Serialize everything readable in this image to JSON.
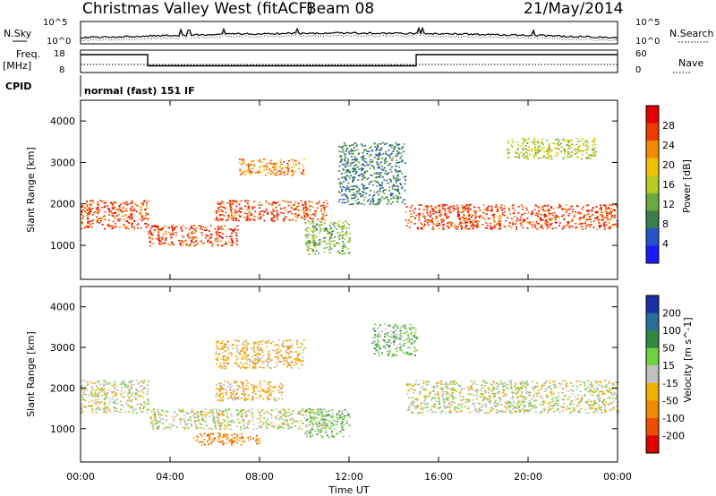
{
  "header": {
    "station": "Christmas Valley West (fitACF)",
    "beam": "Beam 08",
    "date": "21/May/2014"
  },
  "noise_panel": {
    "left_label": "N.Sky",
    "right_label": "N.Search",
    "tick_top": "10^5",
    "tick_bottom": "10^0"
  },
  "freq_panel": {
    "left_label": "Freq.",
    "left_unit": "[MHz]",
    "left_tick_top": "18",
    "left_tick_bottom": "8",
    "right_label": "Nave",
    "right_tick_top": "60",
    "right_tick_bottom": "0"
  },
  "cpid": {
    "label": "CPID",
    "text": "normal (fast) 151 IF"
  },
  "time_axis": {
    "title": "Time UT",
    "ticks": [
      "00:00",
      "04:00",
      "08:00",
      "12:00",
      "16:00",
      "20:00",
      "00:00"
    ]
  },
  "panels": {
    "power": {
      "ylabel": "Slant Range [km]",
      "colorbar_label": "Power [dB]",
      "colorbar_ticks": [
        "4",
        "8",
        "12",
        "16",
        "20",
        "24",
        "28"
      ],
      "colors": [
        "#1a1aff",
        "#2455c8",
        "#3a7d4a",
        "#6aaa40",
        "#b6cc20",
        "#f2c200",
        "#f58a00",
        "#ef3a00",
        "#e60000"
      ]
    },
    "velocity": {
      "ylabel": "Slant Range [km]",
      "colorbar_label": "Velocity [m s^-1]",
      "colorbar_ticks": [
        "200",
        "100",
        "50",
        "15",
        "-15",
        "-50",
        "-100",
        "-200"
      ],
      "colors": [
        "#1a2ea8",
        "#2a6e9a",
        "#2f8a3e",
        "#70d040",
        "#bfbfbf",
        "#f0b000",
        "#f08a00",
        "#ee4c00",
        "#e00000"
      ]
    }
  },
  "chart_data": [
    {
      "type": "heatmap",
      "title": "Power",
      "x_axis": {
        "label": "Time UT",
        "range": [
          "00:00",
          "24:00"
        ],
        "ticks": [
          "00:00",
          "04:00",
          "08:00",
          "12:00",
          "16:00",
          "20:00",
          "00:00"
        ]
      },
      "y_axis": {
        "label": "Slant Range [km]",
        "range": [
          180,
          4500
        ],
        "ticks": [
          1000,
          2000,
          3000,
          4000
        ]
      },
      "colorbar": {
        "label": "Power [dB]",
        "range": [
          0,
          30
        ],
        "ticks": [
          4,
          8,
          12,
          16,
          20,
          24,
          28
        ]
      },
      "features": [
        {
          "t0": 0.0,
          "t1": 3.0,
          "r0": 1400,
          "r1": 2100,
          "power": 26
        },
        {
          "t0": 3.0,
          "t1": 7.0,
          "r0": 1000,
          "r1": 1500,
          "power": 28
        },
        {
          "t0": 6.0,
          "t1": 11.0,
          "r0": 1600,
          "r1": 2100,
          "power": 26
        },
        {
          "t0": 7.0,
          "t1": 10.0,
          "r0": 2700,
          "r1": 3100,
          "power": 22
        },
        {
          "t0": 10.0,
          "t1": 12.0,
          "r0": 800,
          "r1": 1600,
          "power": 10
        },
        {
          "t0": 11.5,
          "t1": 14.5,
          "r0": 2000,
          "r1": 3500,
          "power": 8
        },
        {
          "t0": 14.5,
          "t1": 24.0,
          "r0": 1400,
          "r1": 2000,
          "power": 27
        },
        {
          "t0": 19.0,
          "t1": 23.0,
          "r0": 3100,
          "r1": 3600,
          "power": 16
        }
      ]
    },
    {
      "type": "heatmap",
      "title": "Velocity",
      "x_axis": {
        "label": "Time UT",
        "range": [
          "00:00",
          "24:00"
        ],
        "ticks": [
          "00:00",
          "04:00",
          "08:00",
          "12:00",
          "16:00",
          "20:00",
          "00:00"
        ]
      },
      "y_axis": {
        "label": "Slant Range [km]",
        "range": [
          180,
          4500
        ],
        "ticks": [
          1000,
          2000,
          3000,
          4000
        ]
      },
      "colorbar": {
        "label": "Velocity [m s^-1]",
        "range": [
          -200,
          200
        ],
        "ticks": [
          200,
          100,
          50,
          15,
          -15,
          -50,
          -100,
          -200
        ]
      },
      "features": [
        {
          "t0": 0.0,
          "t1": 3.0,
          "r0": 1400,
          "r1": 2200,
          "velocity": 0
        },
        {
          "t0": 3.0,
          "t1": 11.0,
          "r0": 1000,
          "r1": 1500,
          "velocity": 0
        },
        {
          "t0": 6.0,
          "t1": 9.0,
          "r0": 1700,
          "r1": 2200,
          "velocity": -60
        },
        {
          "t0": 6.0,
          "t1": 10.0,
          "r0": 2500,
          "r1": 3200,
          "velocity": -40
        },
        {
          "t0": 10.0,
          "t1": 12.0,
          "r0": 800,
          "r1": 1500,
          "velocity": 60
        },
        {
          "t0": 13.0,
          "t1": 15.0,
          "r0": 2800,
          "r1": 3600,
          "velocity": 60
        },
        {
          "t0": 14.5,
          "t1": 24.0,
          "r0": 1400,
          "r1": 2200,
          "velocity": 0
        },
        {
          "t0": 5.0,
          "t1": 8.0,
          "r0": 600,
          "r1": 900,
          "velocity": -80
        }
      ]
    },
    {
      "type": "line",
      "title": "Freq. [MHz]",
      "x_axis": {
        "range": [
          "00:00",
          "24:00"
        ]
      },
      "y_axis": {
        "range": [
          8,
          18
        ],
        "ticks": [
          8,
          18
        ]
      },
      "series": [
        {
          "name": "Freq.",
          "x": [
            0,
            3,
            3,
            15,
            15,
            24
          ],
          "y": [
            16,
            16,
            11,
            11,
            16,
            16
          ]
        }
      ]
    }
  ]
}
